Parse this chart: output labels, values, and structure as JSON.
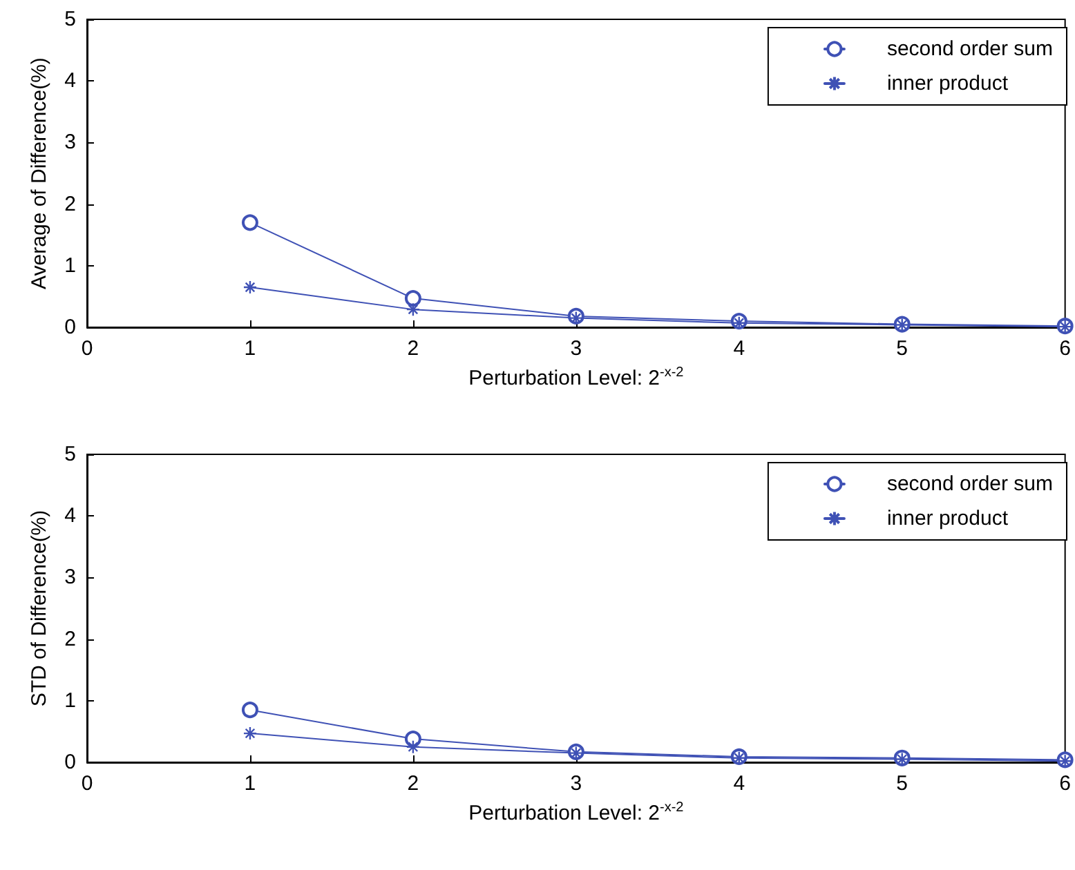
{
  "chart_data": [
    {
      "type": "line",
      "ylabel": "Average of Difference(%)",
      "xlabel": "Perturbation Level: 2$^{-x-2}$",
      "x": [
        1,
        2,
        3,
        4,
        5,
        6
      ],
      "xlim": [
        0,
        6
      ],
      "ylim": [
        0,
        5
      ],
      "xticks": [
        0,
        1,
        2,
        3,
        4,
        5,
        6
      ],
      "yticks": [
        0,
        1,
        2,
        3,
        4,
        5
      ],
      "legend": "top right",
      "grid": false,
      "line_style": "solid",
      "series": [
        {
          "name": "second order sum",
          "color": "#3f51b5",
          "marker": "circle",
          "values": [
            1.7,
            0.47,
            0.18,
            0.1,
            0.05,
            0.02
          ]
        },
        {
          "name": "inner product",
          "color": "#3f51b5",
          "marker": "cross",
          "values": [
            0.65,
            0.29,
            0.15,
            0.07,
            0.04,
            0.01
          ]
        }
      ]
    },
    {
      "type": "line",
      "ylabel": "STD of Difference(%)",
      "xlabel": "Perturbation Level: 2$^{-x-2}$",
      "x": [
        1,
        2,
        3,
        4,
        5,
        6
      ],
      "xlim": [
        0,
        6
      ],
      "ylim": [
        0,
        5
      ],
      "xticks": [
        0,
        1,
        2,
        3,
        4,
        5,
        6
      ],
      "yticks": [
        0,
        1,
        2,
        3,
        4,
        5
      ],
      "legend": "top right",
      "grid": false,
      "line_style": "solid",
      "series": [
        {
          "name": "second order sum",
          "color": "#3f51b5",
          "marker": "circle",
          "values": [
            0.85,
            0.38,
            0.17,
            0.09,
            0.07,
            0.04
          ]
        },
        {
          "name": "inner product",
          "color": "#3f51b5",
          "marker": "cross",
          "values": [
            0.47,
            0.25,
            0.15,
            0.07,
            0.05,
            0.02
          ]
        }
      ]
    }
  ]
}
